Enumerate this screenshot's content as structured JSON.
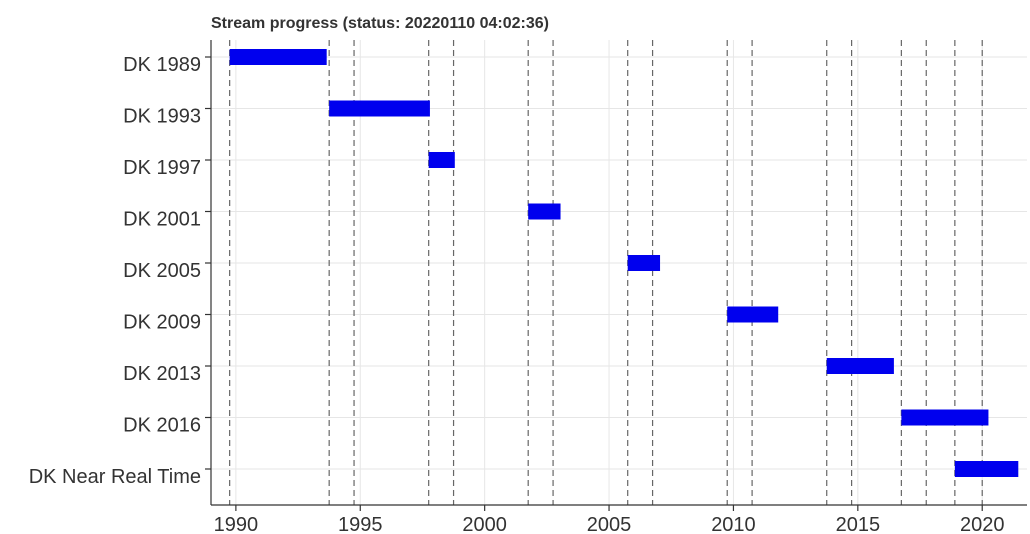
{
  "chart_data": {
    "type": "gantt",
    "title": "Stream progress (status: 20220110 04:02:36)",
    "xlabel": "",
    "ylabel": "",
    "xlim": [
      1989.0,
      2021.8
    ],
    "xticks": [
      1990,
      1995,
      2000,
      2005,
      2010,
      2015,
      2020
    ],
    "categories": [
      "DK 1989",
      "DK 1993",
      "DK 1997",
      "DK 2001",
      "DK 2005",
      "DK 2009",
      "DK 2013",
      "DK 2016",
      "DK Near Real Time"
    ],
    "bars": [
      {
        "category": "DK 1989",
        "start": 1989.75,
        "end": 1993.65
      },
      {
        "category": "DK 1993",
        "start": 1993.75,
        "end": 1997.8
      },
      {
        "category": "DK 1997",
        "start": 1997.75,
        "end": 1998.8
      },
      {
        "category": "DK 2001",
        "start": 2001.75,
        "end": 2003.05
      },
      {
        "category": "DK 2005",
        "start": 2005.75,
        "end": 2007.05
      },
      {
        "category": "DK 2009",
        "start": 2009.75,
        "end": 2011.8
      },
      {
        "category": "DK 2013",
        "start": 2013.75,
        "end": 2016.45
      },
      {
        "category": "DK 2016",
        "start": 2016.75,
        "end": 2020.25
      },
      {
        "category": "DK Near Real Time",
        "start": 2018.9,
        "end": 2021.45
      }
    ],
    "reference_lines": [
      1989.75,
      1993.75,
      1994.75,
      1997.75,
      1998.75,
      2001.75,
      2002.75,
      2005.75,
      2006.75,
      2009.75,
      2010.75,
      2013.75,
      2014.75,
      2016.75,
      2017.75,
      2018.9,
      2020.0
    ],
    "colors": {
      "bar": "#0000ee",
      "grid": "#e6e6e6",
      "reference_line": "#666666",
      "axis": "#333333"
    },
    "grid": true
  }
}
